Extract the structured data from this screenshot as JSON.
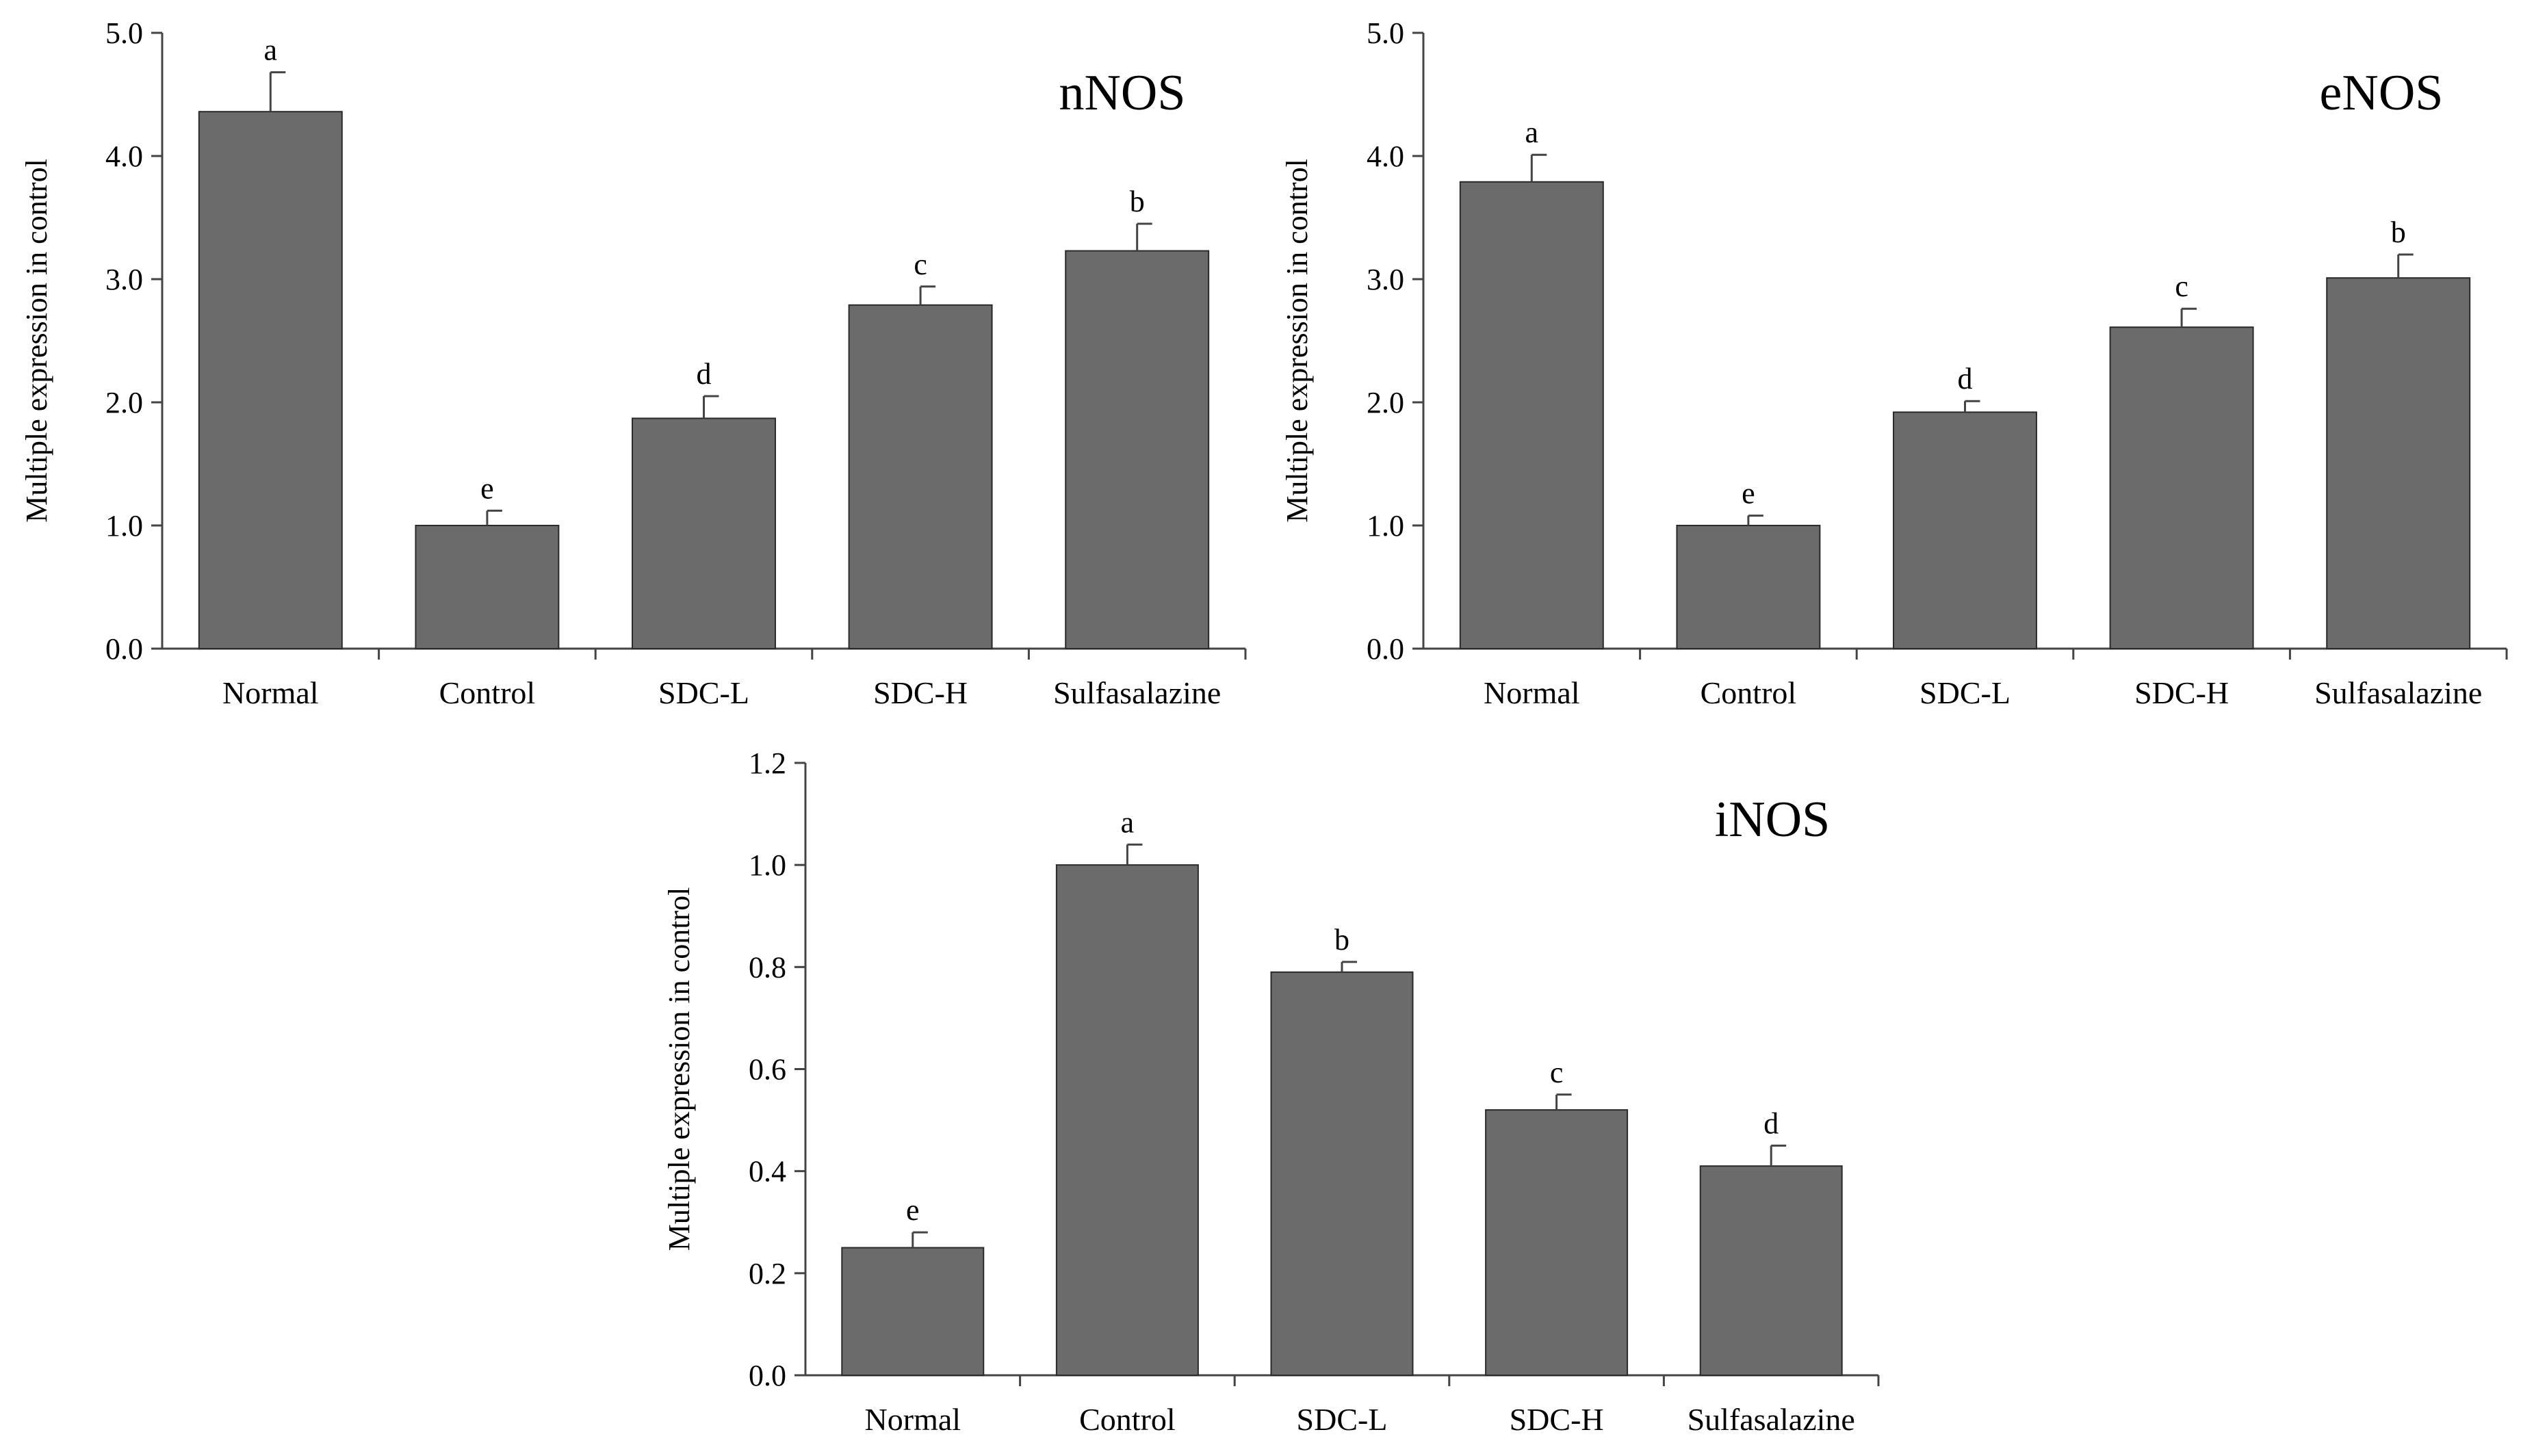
{
  "chart_data": [
    {
      "type": "bar",
      "title": "nNOS",
      "ylabel": "Multiple expression in control",
      "xlabel": "",
      "categories": [
        "Normal",
        "Control",
        "SDC-L",
        "SDC-H",
        "Sulfasalazine"
      ],
      "values": [
        4.36,
        1.0,
        1.87,
        2.79,
        3.23
      ],
      "errors": [
        0.32,
        0.12,
        0.18,
        0.15,
        0.22
      ],
      "significance": [
        "a",
        "e",
        "d",
        "c",
        "b"
      ],
      "ylim": [
        0,
        5
      ],
      "yticks": [
        "0.0",
        "1.0",
        "2.0",
        "3.0",
        "4.0",
        "5.0"
      ],
      "ytick_values": [
        0,
        1,
        2,
        3,
        4,
        5
      ],
      "bar_color": "#6b6b6b"
    },
    {
      "type": "bar",
      "title": "eNOS",
      "ylabel": "Multiple expression in control",
      "xlabel": "",
      "categories": [
        "Normal",
        "Control",
        "SDC-L",
        "SDC-H",
        "Sulfasalazine"
      ],
      "values": [
        3.79,
        1.0,
        1.92,
        2.61,
        3.01
      ],
      "errors": [
        0.22,
        0.08,
        0.09,
        0.15,
        0.19
      ],
      "significance": [
        "a",
        "e",
        "d",
        "c",
        "b"
      ],
      "ylim": [
        0,
        5
      ],
      "yticks": [
        "0.0",
        "1.0",
        "2.0",
        "3.0",
        "4.0",
        "5.0"
      ],
      "ytick_values": [
        0,
        1,
        2,
        3,
        4,
        5
      ],
      "bar_color": "#6b6b6b"
    },
    {
      "type": "bar",
      "title": "iNOS",
      "ylabel": "Multiple expression in control",
      "xlabel": "",
      "categories": [
        "Normal",
        "Control",
        "SDC-L",
        "SDC-H",
        "Sulfasalazine"
      ],
      "values": [
        0.25,
        1.0,
        0.79,
        0.52,
        0.41
      ],
      "errors": [
        0.03,
        0.04,
        0.02,
        0.03,
        0.04
      ],
      "significance": [
        "e",
        "a",
        "b",
        "c",
        "d"
      ],
      "ylim": [
        0,
        1.2
      ],
      "yticks": [
        "0.0",
        "0.2",
        "0.4",
        "0.6",
        "0.8",
        "1.0",
        "1.2"
      ],
      "ytick_values": [
        0,
        0.2,
        0.4,
        0.6,
        0.8,
        1.0,
        1.2
      ],
      "bar_color": "#6b6b6b"
    }
  ]
}
